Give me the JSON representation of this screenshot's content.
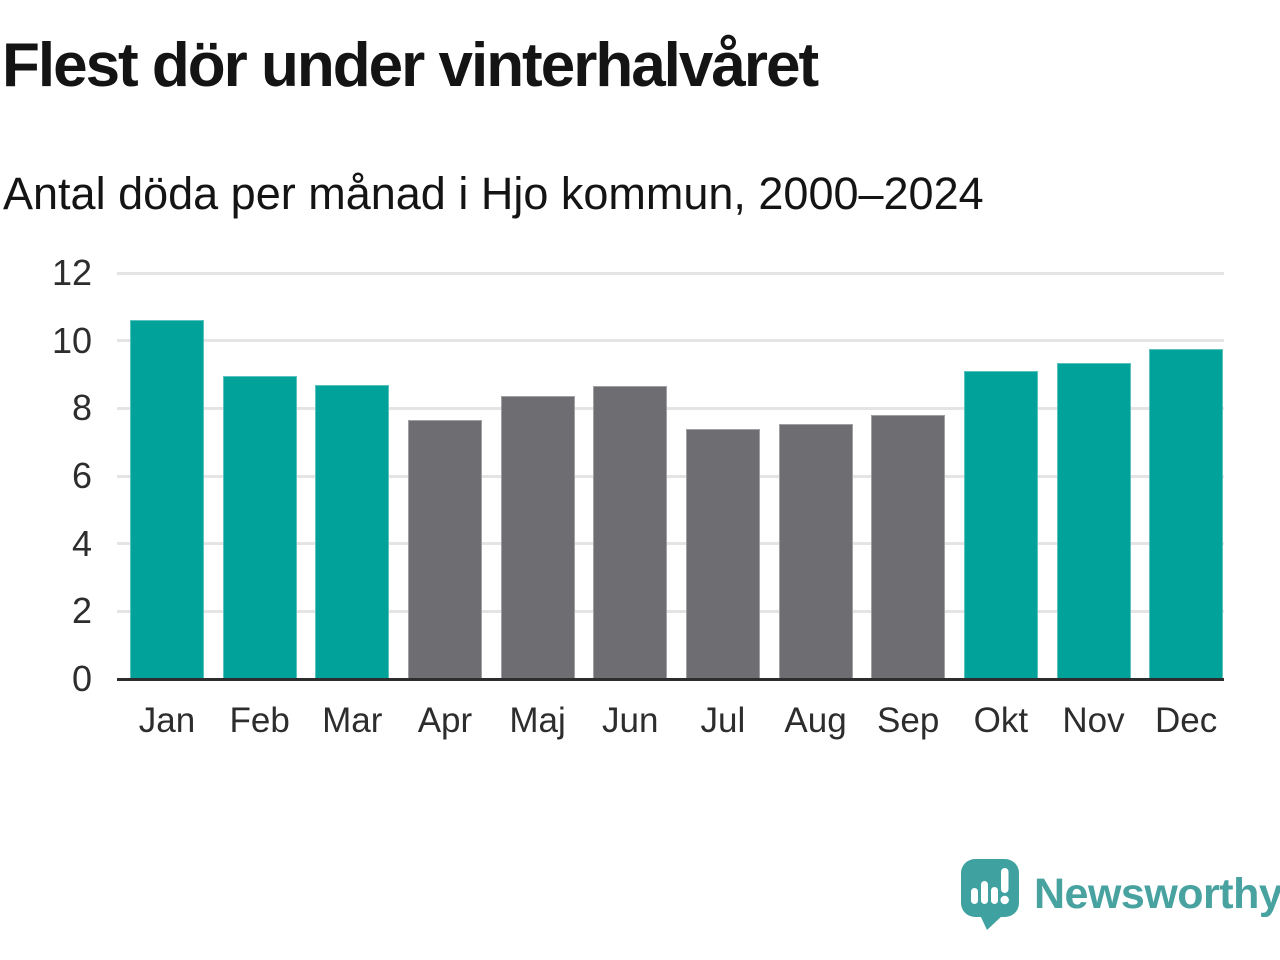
{
  "header": {
    "title": "Flest dör under vinterhalvåret",
    "subtitle": "Antal döda per månad i Hjo kommun, 2000–2024"
  },
  "chart_data": {
    "type": "bar",
    "title": "Flest dör under vinterhalvåret",
    "subtitle": "Antal döda per månad i Hjo kommun, 2000–2024",
    "categories": [
      "Jan",
      "Feb",
      "Mar",
      "Apr",
      "Maj",
      "Jun",
      "Jul",
      "Aug",
      "Sep",
      "Okt",
      "Nov",
      "Dec"
    ],
    "values": [
      10.6,
      8.95,
      8.7,
      7.65,
      8.35,
      8.65,
      7.4,
      7.55,
      7.8,
      9.1,
      9.35,
      9.75
    ],
    "highlighted_categories": [
      "Jan",
      "Feb",
      "Mar",
      "Okt",
      "Nov",
      "Dec"
    ],
    "highlight_color": "#00a29a",
    "default_color": "#6e6e72",
    "grid_color": "#e4e4e4",
    "axis_color": "#2d2d2d",
    "tick_text_color": "#2d2d2d",
    "ylim": [
      0,
      12
    ],
    "yticks": [
      0,
      2,
      4,
      6,
      8,
      10,
      12
    ],
    "grid": "horizontal-only",
    "legend": "none",
    "xlabel": "",
    "ylabel": ""
  },
  "footer": {
    "brand": "Newsworthy",
    "brand_color": "#47a2a0",
    "logo_icon": "speech-bubble-bar-chart-exclamation",
    "logo_icon_color": "#40a2a0"
  }
}
